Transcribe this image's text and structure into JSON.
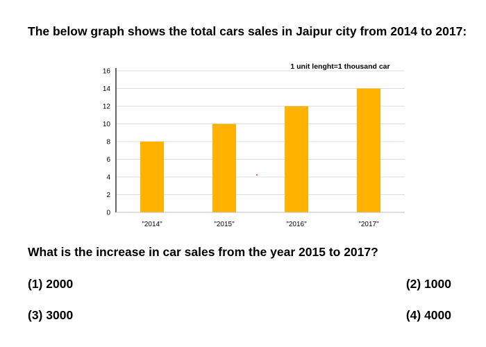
{
  "question_intro": "The below graph shows the total cars sales in Jaipur city from 2014 to 2017:",
  "question": "What is the increase in car sales from the year 2015 to 2017?",
  "options": [
    {
      "label": "(1) 2000"
    },
    {
      "label": "(2) 1000"
    },
    {
      "label": "(3) 3000"
    },
    {
      "label": "(4) 4000"
    }
  ],
  "chart_data": {
    "type": "bar",
    "categories": [
      "\"2014\"",
      "\"2015\"",
      "\"2016\"",
      "\"2017\""
    ],
    "values": [
      8,
      10,
      12,
      14
    ],
    "annotation": "1 unit lenght=1 thousand car",
    "ylim": [
      0,
      16
    ],
    "yticks": [
      0,
      2,
      4,
      6,
      8,
      10,
      12,
      14,
      16
    ],
    "grid": true,
    "bar_color": "#FFB300"
  }
}
